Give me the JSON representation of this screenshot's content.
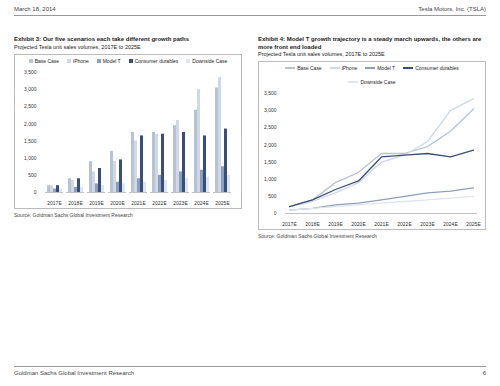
{
  "page": {
    "date": "March 18, 2014",
    "company": "Tesla Motors, Inc. (TSLA)",
    "footer": "Goldman Sachs Global Investment Research",
    "page_number": 6
  },
  "chart_data": [
    {
      "type": "bar",
      "title": "Exhibit 3: Our five scenarios each take different growth paths",
      "subtitle": "Projected Tesla unit sales volumes, 2017E to 2025E",
      "source": "Source: Goldman Sachs Global Investment Research",
      "categories": [
        "2017E",
        "2018E",
        "2019E",
        "2020E",
        "2021E",
        "2022E",
        "2023E",
        "2024E",
        "2025E"
      ],
      "series": [
        {
          "name": "Base Case",
          "color": "#b7c3d5",
          "values": [
            200,
            400,
            900,
            1200,
            1750,
            1750,
            1950,
            2400,
            3050
          ]
        },
        {
          "name": "iPhone",
          "color": "#cfd8e6",
          "values": [
            200,
            350,
            600,
            900,
            1500,
            1700,
            2100,
            3000,
            3350
          ]
        },
        {
          "name": "Model T",
          "color": "#8c9fbc",
          "values": [
            100,
            150,
            250,
            300,
            400,
            500,
            600,
            650,
            750
          ]
        },
        {
          "name": "Consumer durables",
          "color": "#3a4f78",
          "values": [
            200,
            400,
            700,
            950,
            1650,
            1700,
            1750,
            1650,
            1850
          ]
        },
        {
          "name": "Downside Case",
          "color": "#dfe5ee",
          "values": [
            100,
            150,
            200,
            250,
            300,
            350,
            400,
            450,
            500
          ]
        }
      ],
      "ylim": [
        0,
        3500
      ],
      "yticks": [
        0,
        500,
        {
          "value": 1000,
          "label": "1,000"
        },
        {
          "value": 1500,
          "label": "1,500"
        },
        {
          "value": 2000,
          "label": "2,000"
        },
        {
          "value": 2500,
          "label": "2,500"
        },
        {
          "value": 3000,
          "label": "3,000"
        },
        {
          "value": 3500,
          "label": "3,500"
        }
      ],
      "grid": false,
      "legend": "top"
    },
    {
      "type": "line",
      "title": "Exhibit 4: Model T growth trajectory is a steady march upwards, the others are more front end loaded",
      "subtitle": "Projected Tesla unit sales volumes, 2017E to 2025E",
      "source": "Source: Goldman Sachs Global Investment Research",
      "categories": [
        "2017E",
        "2018E",
        "2019E",
        "2020E",
        "2021E",
        "2022E",
        "2023E",
        "2024E",
        "2025E"
      ],
      "series": [
        {
          "name": "Base Case",
          "color": "#b7c3d5",
          "values": [
            200,
            400,
            900,
            1200,
            1750,
            1750,
            1950,
            2400,
            3050
          ]
        },
        {
          "name": "iPhone",
          "color": "#cfd8e6",
          "values": [
            200,
            350,
            600,
            900,
            1500,
            1700,
            2100,
            3000,
            3350
          ]
        },
        {
          "name": "Model T",
          "color": "#8c9fbc",
          "values": [
            100,
            150,
            250,
            300,
            400,
            500,
            600,
            650,
            750
          ]
        },
        {
          "name": "Consumer durables",
          "color": "#3a4f78",
          "values": [
            200,
            400,
            700,
            950,
            1650,
            1700,
            1750,
            1650,
            1850
          ]
        },
        {
          "name": "Downside Case",
          "color": "#dfe5ee",
          "values": [
            100,
            150,
            200,
            250,
            300,
            350,
            400,
            450,
            500
          ]
        }
      ],
      "ylim": [
        0,
        3500
      ],
      "yticks": [
        0,
        500,
        {
          "value": 1000,
          "label": "1,000"
        },
        {
          "value": 1500,
          "label": "1,500"
        },
        {
          "value": 2000,
          "label": "2,000"
        },
        {
          "value": 2500,
          "label": "2,500"
        },
        {
          "value": 3000,
          "label": "3,000"
        },
        {
          "value": 3500,
          "label": "3,500"
        }
      ],
      "grid": false,
      "legend": "top"
    }
  ]
}
